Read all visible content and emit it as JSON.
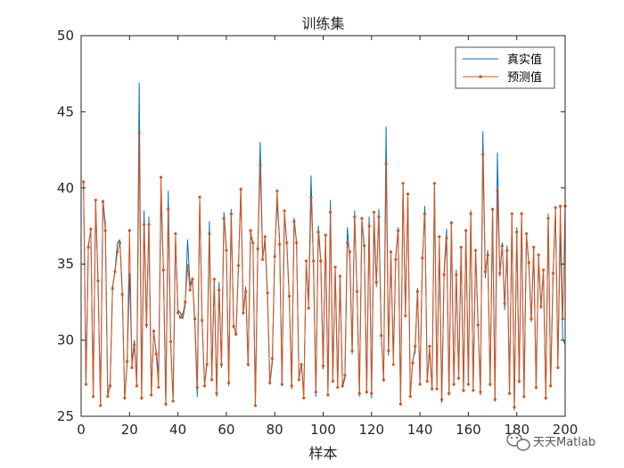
{
  "chart_data": {
    "type": "line",
    "title": "训练集",
    "xlabel": "样本",
    "ylabel": "",
    "xlim": [
      0,
      200
    ],
    "ylim": [
      25,
      50
    ],
    "xticks": [
      0,
      20,
      40,
      60,
      80,
      100,
      120,
      140,
      160,
      180,
      200
    ],
    "yticks": [
      25,
      30,
      35,
      40,
      45,
      50
    ],
    "grid": false,
    "legend_position": "top-right",
    "colors": {
      "真实值": "#0072BD",
      "预测值": "#D95319"
    },
    "x": [
      1,
      2,
      3,
      4,
      5,
      6,
      7,
      8,
      9,
      10,
      11,
      12,
      13,
      14,
      15,
      16,
      17,
      18,
      19,
      20,
      21,
      22,
      23,
      24,
      25,
      26,
      27,
      28,
      29,
      30,
      31,
      32,
      33,
      34,
      35,
      36,
      37,
      38,
      39,
      40,
      41,
      42,
      43,
      44,
      45,
      46,
      47,
      48,
      49,
      50,
      51,
      52,
      53,
      54,
      55,
      56,
      57,
      58,
      59,
      60,
      61,
      62,
      63,
      64,
      65,
      66,
      67,
      68,
      69,
      70,
      71,
      72,
      73,
      74,
      75,
      76,
      77,
      78,
      79,
      80,
      81,
      82,
      83,
      84,
      85,
      86,
      87,
      88,
      89,
      90,
      91,
      92,
      93,
      94,
      95,
      96,
      97,
      98,
      99,
      100,
      101,
      102,
      103,
      104,
      105,
      106,
      107,
      108,
      109,
      110,
      111,
      112,
      113,
      114,
      115,
      116,
      117,
      118,
      119,
      120,
      121,
      122,
      123,
      124,
      125,
      126,
      127,
      128,
      129,
      130,
      131,
      132,
      133,
      134,
      135,
      136,
      137,
      138,
      139,
      140,
      141,
      142,
      143,
      144,
      145,
      146,
      147,
      148,
      149,
      150,
      151,
      152,
      153,
      154,
      155,
      156,
      157,
      158,
      159,
      160,
      161,
      162,
      163,
      164,
      165,
      166,
      167,
      168,
      169,
      170,
      171,
      172,
      173,
      174,
      175,
      176,
      177,
      178,
      179,
      180,
      181,
      182,
      183,
      184,
      185,
      186,
      187,
      188,
      189,
      190,
      191,
      192,
      193,
      194,
      195,
      196,
      197,
      198,
      199,
      200
    ],
    "series": [
      {
        "name": "真实值",
        "values": [
          40.3,
          27.2,
          36.3,
          37.2,
          26.5,
          39.1,
          33.7,
          25.8,
          39.2,
          37.7,
          26.3,
          27.2,
          33.5,
          34.6,
          36.4,
          36.6,
          33.3,
          26.1,
          28.4,
          34.4,
          28.5,
          30.0,
          27.2,
          46.9,
          26.1,
          38.5,
          30.8,
          38.1,
          26.4,
          30.5,
          29.3,
          27.8,
          39.4,
          34.8,
          25.7,
          39.8,
          29.7,
          26.0,
          36.7,
          32.0,
          31.8,
          31.4,
          32.3,
          36.6,
          33.6,
          34.1,
          31.0,
          26.3,
          39.2,
          31.2,
          27.1,
          28.6,
          37.8,
          27.6,
          34.0,
          26.3,
          33.8,
          28.2,
          38.4,
          36.1,
          27.0,
          38.6,
          31.1,
          30.3,
          34.8,
          40.0,
          31.7,
          33.5,
          28.3,
          36.8,
          36.4,
          25.8,
          35.9,
          43.0,
          35.4,
          36.4,
          32.9,
          27.1,
          28.5,
          35.8,
          39.0,
          36.7,
          27.0,
          38.3,
          36.3,
          32.7,
          26.8,
          38.0,
          36.5,
          27.4,
          28.5,
          26.5,
          35.1,
          32.6,
          40.8,
          34.9,
          26.3,
          37.5,
          35.3,
          28.1,
          36.9,
          26.5,
          39.2,
          27.4,
          34.7,
          27.0,
          34.1,
          26.9,
          27.5,
          37.4,
          35.3,
          29.1,
          38.5,
          33.1,
          26.3,
          37.8,
          36.0,
          26.5,
          38.1,
          26.2,
          37.6,
          33.5,
          38.6,
          30.5,
          27.3,
          44.0,
          29.0,
          35.6,
          28.9,
          35.5,
          37.4,
          25.8,
          40.2,
          31.8,
          39.5,
          26.3,
          28.7,
          29.2,
          33.4,
          27.2,
          35.0,
          38.8,
          27.4,
          29.3,
          26.7,
          40.3,
          27.0,
          36.2,
          25.9,
          34.6,
          37.3,
          26.4,
          37.8,
          27.0,
          34.6,
          27.5,
          36.0,
          26.6,
          37.1,
          27.3,
          38.5,
          26.8,
          35.8,
          31.2,
          26.4,
          43.7,
          34.1,
          35.9,
          27.0,
          38.5,
          26.0,
          42.3,
          34.2,
          36.4,
          32.0,
          36.2,
          26.5,
          38.1,
          25.4,
          37.4,
          27.2,
          38.4,
          26.2,
          36.9,
          34.9,
          31.2,
          36.0,
          26.8,
          35.4,
          32.1,
          34.5,
          26.1,
          38.3,
          27.0,
          34.2,
          38.4,
          28.4,
          37.2,
          30.1,
          29.7
        ]
      },
      {
        "name": "预测值",
        "values": [
          40.4,
          27.1,
          36.1,
          37.3,
          26.3,
          39.2,
          33.9,
          25.7,
          39.1,
          37.2,
          26.3,
          27.0,
          33.4,
          34.5,
          35.8,
          36.4,
          33.0,
          26.2,
          28.6,
          37.2,
          28.2,
          29.7,
          27.0,
          43.6,
          26.2,
          37.6,
          31.0,
          37.6,
          26.4,
          30.6,
          29.1,
          26.9,
          40.7,
          34.6,
          25.8,
          38.6,
          29.9,
          26.0,
          37.0,
          31.8,
          31.5,
          31.7,
          32.5,
          34.9,
          33.3,
          34.0,
          31.4,
          26.9,
          39.4,
          31.3,
          27.0,
          28.4,
          37.0,
          27.4,
          34.0,
          26.5,
          33.3,
          28.4,
          38.0,
          35.9,
          27.2,
          38.3,
          30.9,
          30.4,
          34.9,
          39.9,
          31.8,
          33.2,
          28.4,
          37.2,
          36.4,
          25.7,
          36.0,
          41.5,
          35.3,
          36.8,
          33.1,
          27.2,
          28.8,
          35.5,
          39.8,
          36.3,
          27.1,
          38.5,
          36.4,
          32.9,
          27.0,
          37.8,
          36.4,
          27.4,
          28.4,
          26.2,
          35.2,
          32.1,
          39.4,
          35.2,
          26.6,
          37.1,
          35.2,
          28.3,
          36.9,
          26.4,
          38.4,
          27.3,
          34.8,
          26.9,
          34.2,
          27.0,
          27.7,
          36.4,
          35.8,
          29.3,
          38.1,
          33.2,
          26.5,
          38.0,
          36.2,
          26.6,
          37.5,
          26.5,
          38.4,
          33.8,
          38.1,
          30.3,
          27.4,
          41.6,
          29.3,
          35.8,
          28.4,
          35.3,
          37.2,
          25.8,
          40.3,
          31.6,
          39.6,
          26.3,
          28.5,
          29.6,
          33.2,
          27.1,
          35.4,
          38.3,
          27.3,
          29.6,
          26.8,
          40.3,
          26.8,
          36.8,
          26.1,
          34.3,
          36.7,
          26.5,
          37.7,
          27.1,
          34.3,
          27.5,
          36.1,
          26.7,
          37.2,
          27.1,
          38.3,
          26.7,
          35.9,
          31.0,
          26.6,
          42.2,
          34.5,
          35.6,
          27.1,
          38.6,
          26.1,
          39.8,
          34.4,
          36.2,
          32.4,
          35.9,
          26.5,
          38.3,
          25.6,
          37.1,
          27.3,
          38.3,
          26.3,
          37.0,
          35.1,
          31.4,
          36.1,
          26.9,
          35.6,
          32.2,
          34.6,
          26.2,
          38.0,
          27.0,
          34.4,
          38.7,
          28.2,
          38.8,
          31.4,
          38.8
        ]
      }
    ]
  },
  "watermark": {
    "icon": "wechat-icon",
    "text": "天天Matlab"
  }
}
